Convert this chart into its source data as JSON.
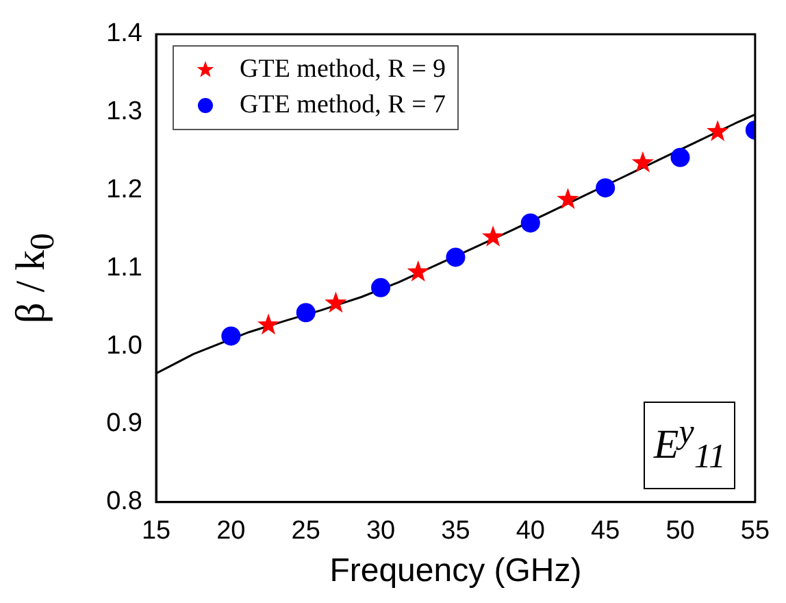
{
  "chart_data": {
    "type": "scatter",
    "xlabel": "Frequency (GHz)",
    "ylabel": "β / k$_{0}$",
    "annotations": [
      "E$^{y}$$_{11}$"
    ],
    "xlim": [
      15,
      55
    ],
    "xticks": [
      15,
      20,
      25,
      30,
      35,
      40,
      45,
      50,
      55
    ],
    "ylim": [
      0.8,
      1.4
    ],
    "yticks": [
      0.8,
      0.9,
      {
        "value": 1,
        "label": "1.0"
      },
      1.1,
      1.2,
      1.3,
      1.4
    ],
    "grid": false,
    "legend": "top left",
    "series": [
      {
        "name": "GTE method, R = 9",
        "color": "#ff0000",
        "marker": "star",
        "x": [
          22.5,
          27,
          32.5,
          37.5,
          42.5,
          47.5,
          52.5
        ],
        "values": [
          1.027,
          1.055,
          1.095,
          1.14,
          1.188,
          1.235,
          1.275
        ]
      },
      {
        "name": "GTE method, R = 7",
        "color": "#0000ff",
        "marker": "circle",
        "x": [
          20,
          25,
          30,
          35,
          40,
          45,
          50,
          55
        ],
        "values": [
          1.013,
          1.043,
          1.075,
          1.114,
          1.158,
          1.203,
          1.242,
          1.277
        ]
      },
      {
        "type": "line",
        "color": "#000000",
        "marker": "none",
        "x": [
          15,
          17.5,
          21.2,
          23.7,
          26,
          28.7,
          31.2,
          33.7,
          36.2,
          38.8,
          41.2,
          43.7,
          46.2,
          48.8,
          51.2,
          53.7,
          55
        ],
        "values": [
          0.965,
          0.99,
          1.018,
          1.033,
          1.046,
          1.063,
          1.082,
          1.104,
          1.126,
          1.149,
          1.171,
          1.194,
          1.217,
          1.241,
          1.263,
          1.286,
          1.297
        ]
      }
    ]
  }
}
